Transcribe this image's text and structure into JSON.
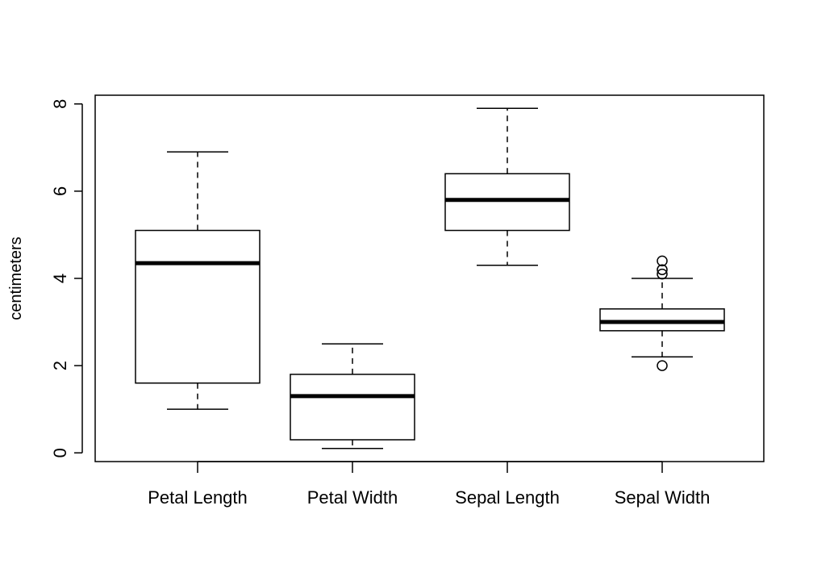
{
  "chart_data": {
    "type": "boxplot",
    "title": "",
    "xlabel": "",
    "ylabel": "centimeters",
    "ylim": [
      -0.2,
      8.2
    ],
    "yticks": [
      0,
      2,
      4,
      6,
      8
    ],
    "grid": false,
    "categories": [
      "Petal Length",
      "Petal Width",
      "Sepal Length",
      "Sepal Width"
    ],
    "boxes": [
      {
        "name": "Petal Length",
        "whisker_low": 1.0,
        "q1": 1.6,
        "median": 4.35,
        "q3": 5.1,
        "whisker_high": 6.9,
        "outliers": []
      },
      {
        "name": "Petal Width",
        "whisker_low": 0.1,
        "q1": 0.3,
        "median": 1.3,
        "q3": 1.8,
        "whisker_high": 2.5,
        "outliers": []
      },
      {
        "name": "Sepal Length",
        "whisker_low": 4.3,
        "q1": 5.1,
        "median": 5.8,
        "q3": 6.4,
        "whisker_high": 7.9,
        "outliers": []
      },
      {
        "name": "Sepal Width",
        "whisker_low": 2.2,
        "q1": 2.8,
        "median": 3.0,
        "q3": 3.3,
        "whisker_high": 4.0,
        "outliers": [
          2.0,
          4.1,
          4.2,
          4.4
        ]
      }
    ]
  }
}
